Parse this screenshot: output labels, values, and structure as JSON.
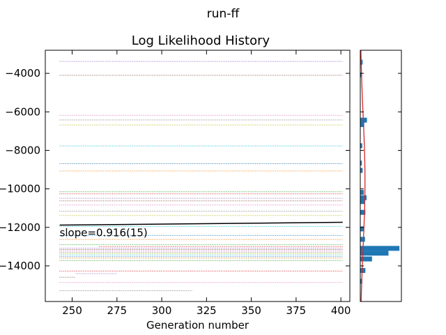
{
  "figure": {
    "suptitle": "run-ff",
    "colors": {
      "fit_line": "#000000",
      "hist_bar": "#1f77b4",
      "gauss_curve": "#d62728",
      "dotted": [
        "#9467bd",
        "#8c564b",
        "#e377c2",
        "#7f7f7f",
        "#bcbd22",
        "#17becf",
        "#1f77b4",
        "#ff7f0e",
        "#2ca02c",
        "#d62728"
      ]
    }
  },
  "chart_data": [
    {
      "type": "line",
      "title": "Log Likelihood History",
      "xlabel": "Generation number",
      "ylabel": "",
      "xlim": [
        235,
        405
      ],
      "ylim": [
        -15850,
        -2800
      ],
      "xticks": [
        250,
        275,
        300,
        325,
        350,
        375,
        400
      ],
      "yticks": [
        -14000,
        -12000,
        -10000,
        -8000,
        -6000,
        -4000
      ],
      "xtick_labels": [
        "250",
        "275",
        "300",
        "325",
        "350",
        "375",
        "400"
      ],
      "ytick_labels": [
        "−14000",
        "−12000",
        "−10000",
        "−8000",
        "−6000",
        "−4000"
      ],
      "grid": false,
      "annotation": "slope=0.916(15)",
      "fit_line": {
        "x": [
          243,
          401
        ],
        "y": [
          -11880,
          -11735
        ]
      },
      "series_levels": [
        {
          "y": -3380,
          "x": [
            243,
            401
          ]
        },
        {
          "y": -4100,
          "x": [
            243,
            401
          ]
        },
        {
          "y": -6180,
          "x": [
            243,
            401
          ]
        },
        {
          "y": -6420,
          "x": [
            243,
            401
          ]
        },
        {
          "y": -6680,
          "x": [
            243,
            401
          ]
        },
        {
          "y": -7770,
          "x": [
            243,
            401
          ]
        },
        {
          "y": -8690,
          "x": [
            243,
            401
          ]
        },
        {
          "y": -9070,
          "x": [
            243,
            401
          ]
        },
        {
          "y": -10150,
          "x": [
            243,
            401
          ]
        },
        {
          "y": -10260,
          "x": [
            243,
            401
          ]
        },
        {
          "y": -10490,
          "x": [
            243,
            401
          ]
        },
        {
          "y": -10620,
          "x": [
            243,
            401
          ]
        },
        {
          "y": -10840,
          "x": [
            243,
            401
          ]
        },
        {
          "y": -11160,
          "x": [
            243,
            401
          ]
        },
        {
          "y": -11380,
          "x": [
            243,
            401
          ]
        },
        {
          "y": -11950,
          "x": [
            243,
            401
          ]
        },
        {
          "y": -12420,
          "x": [
            243,
            401
          ]
        },
        {
          "y": -12630,
          "x": [
            243,
            401
          ]
        },
        {
          "y": -12900,
          "x": [
            243,
            401
          ]
        },
        {
          "y": -13000,
          "x": [
            265,
            401
          ]
        },
        {
          "y": -13080,
          "x": [
            243,
            401
          ]
        },
        {
          "y": -13150,
          "x": [
            243,
            401
          ]
        },
        {
          "y": -13210,
          "x": [
            243,
            401
          ]
        },
        {
          "y": -13290,
          "x": [
            243,
            401
          ]
        },
        {
          "y": -13360,
          "x": [
            243,
            401
          ]
        },
        {
          "y": -13430,
          "x": [
            243,
            401
          ]
        },
        {
          "y": -13520,
          "x": [
            243,
            401
          ]
        },
        {
          "y": -13600,
          "x": [
            243,
            401
          ]
        },
        {
          "y": -13720,
          "x": [
            243,
            401
          ]
        },
        {
          "y": -14270,
          "x": [
            243,
            401
          ]
        },
        {
          "y": -14400,
          "x": [
            252,
            275
          ]
        },
        {
          "y": -14590,
          "x": [
            243,
            252
          ]
        },
        {
          "y": -14860,
          "x": [
            243,
            401
          ]
        },
        {
          "y": -15290,
          "x": [
            243,
            317
          ]
        }
      ]
    },
    {
      "type": "bar",
      "orientation": "horizontal",
      "description_of": "histogram of log likelihood values",
      "ylim": [
        -15850,
        -2800
      ],
      "xlim": [
        0,
        10.5
      ],
      "bins": [
        {
          "y": -3420,
          "count": 0.6
        },
        {
          "y": -4080,
          "count": 0.4
        },
        {
          "y": -6430,
          "count": 1.7
        },
        {
          "y": -6660,
          "count": 1.0
        },
        {
          "y": -7760,
          "count": 0.5
        },
        {
          "y": -8660,
          "count": 0.4
        },
        {
          "y": -9040,
          "count": 0.6
        },
        {
          "y": -10180,
          "count": 0.9
        },
        {
          "y": -10460,
          "count": 1.6
        },
        {
          "y": -10660,
          "count": 1.1
        },
        {
          "y": -11220,
          "count": 1.3
        },
        {
          "y": -12080,
          "count": 1.0
        },
        {
          "y": -12620,
          "count": 1.2
        },
        {
          "y": -13090,
          "count": 10.0
        },
        {
          "y": -13340,
          "count": 7.2
        },
        {
          "y": -13640,
          "count": 3.0
        },
        {
          "y": -14240,
          "count": 1.3
        },
        {
          "y": -14800,
          "count": 0.5
        }
      ],
      "fit_curve": {
        "type": "gaussian",
        "mean": -9600,
        "sd": 3400,
        "peak": 1.2
      }
    }
  ]
}
